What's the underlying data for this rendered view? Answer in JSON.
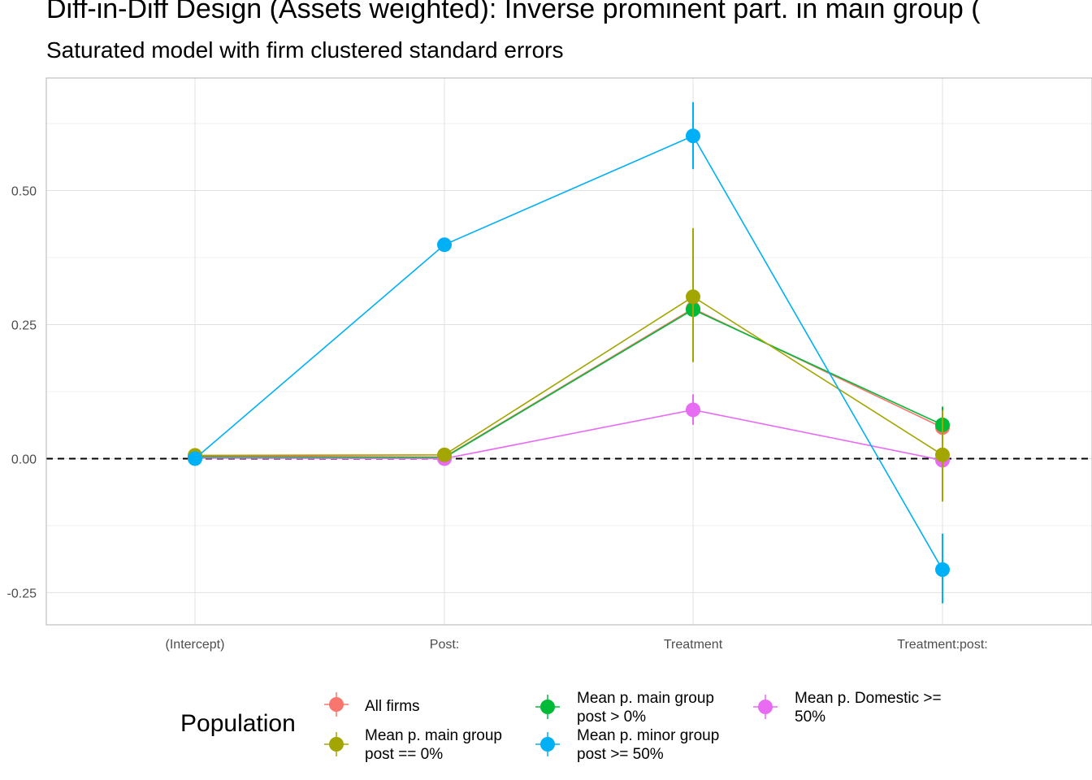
{
  "title": "Diff-in-Diff Design (Assets weighted): Inverse prominent part. in main group (",
  "subtitle": "Saturated model with firm clustered standard errors",
  "legend": {
    "title": "Population"
  },
  "chart_data": {
    "type": "line",
    "title": "Diff-in-Diff Design (Assets weighted): Inverse prominent part. in main group (",
    "subtitle": "Saturated model with firm clustered standard errors",
    "xlabel": "",
    "ylabel": "",
    "categories": [
      "(Intercept)",
      "Post:",
      "Treatment",
      "Treatment:post:"
    ],
    "ylim": [
      -0.31,
      0.71
    ],
    "yticks": [
      -0.25,
      0.0,
      0.25,
      0.5
    ],
    "ytick_labels": [
      "-0.25",
      "0.00",
      "0.25",
      "0.50"
    ],
    "reference_line": 0,
    "grid": true,
    "legend_position": "bottom",
    "series": [
      {
        "name": "All firms",
        "color": "#F8766D",
        "values": [
          0.005,
          0.003,
          0.28,
          0.058
        ],
        "lower": [
          0.005,
          0.003,
          0.23,
          0.03
        ],
        "upper": [
          0.005,
          0.003,
          0.33,
          0.09
        ]
      },
      {
        "name": "Mean p. main group post > 0%",
        "color": "#00BA38",
        "values": [
          0.003,
          0.002,
          0.278,
          0.063
        ],
        "lower": [
          0.003,
          0.002,
          0.23,
          0.03
        ],
        "upper": [
          0.003,
          0.002,
          0.33,
          0.097
        ]
      },
      {
        "name": "Mean p. Domestic >= 50%",
        "color": "#E76BF3",
        "values": [
          0.001,
          0.0,
          0.091,
          -0.003
        ],
        "lower": [
          0.001,
          0.0,
          0.063,
          -0.03
        ],
        "upper": [
          0.001,
          0.0,
          0.12,
          0.02
        ]
      },
      {
        "name": "Mean p. main group post == 0%",
        "color": "#A3A500",
        "values": [
          0.006,
          0.007,
          0.302,
          0.007
        ],
        "lower": [
          0.006,
          0.007,
          0.18,
          -0.08
        ],
        "upper": [
          0.006,
          0.007,
          0.43,
          0.09
        ]
      },
      {
        "name": "Mean p. minor group post >= 50%",
        "color": "#00B0F6",
        "values": [
          0.0,
          0.399,
          0.602,
          -0.207
        ],
        "lower": [
          0.0,
          0.399,
          0.54,
          -0.27
        ],
        "upper": [
          0.0,
          0.399,
          0.665,
          -0.14
        ]
      }
    ]
  },
  "legend_items": [
    {
      "line1": "All firms",
      "line2": "",
      "color": "#F8766D"
    },
    {
      "line1": "Mean p. main group",
      "line2": "post == 0%",
      "color": "#A3A500"
    },
    {
      "line1": "Mean p. main group",
      "line2": "post > 0%",
      "color": "#00BA38"
    },
    {
      "line1": "Mean p. minor group",
      "line2": "post >= 50%",
      "color": "#00B0F6"
    },
    {
      "line1": "Mean p. Domestic >=",
      "line2": "50%",
      "color": "#E76BF3"
    }
  ]
}
